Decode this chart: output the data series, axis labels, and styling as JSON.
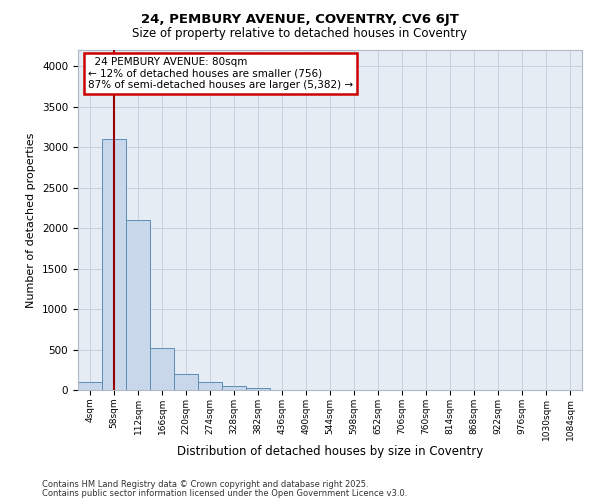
{
  "title1": "24, PEMBURY AVENUE, COVENTRY, CV6 6JT",
  "title2": "Size of property relative to detached houses in Coventry",
  "xlabel": "Distribution of detached houses by size in Coventry",
  "ylabel": "Number of detached properties",
  "bin_labels": [
    "4sqm",
    "58sqm",
    "112sqm",
    "166sqm",
    "220sqm",
    "274sqm",
    "328sqm",
    "382sqm",
    "436sqm",
    "490sqm",
    "544sqm",
    "598sqm",
    "652sqm",
    "706sqm",
    "760sqm",
    "814sqm",
    "868sqm",
    "922sqm",
    "976sqm",
    "1030sqm",
    "1084sqm"
  ],
  "bar_values": [
    100,
    3100,
    2100,
    520,
    200,
    100,
    50,
    30,
    0,
    0,
    0,
    0,
    0,
    0,
    0,
    0,
    0,
    0,
    0,
    0
  ],
  "bar_color": "#c8d8ea",
  "bar_edge_color": "#5b8db8",
  "grid_color": "#c4cdd8",
  "bg_color": "#e6ecf4",
  "red_line_x": 1.0,
  "annotation_text_lines": [
    "  24 PEMBURY AVENUE: 80sqm  ",
    "← 12% of detached houses are smaller (756)",
    "87% of semi-detached houses are larger (5,382) →"
  ],
  "annotation_box_color": "#cc0000",
  "ylim": [
    0,
    4200
  ],
  "yticks": [
    0,
    500,
    1000,
    1500,
    2000,
    2500,
    3000,
    3500,
    4000
  ],
  "footer1": "Contains HM Land Registry data © Crown copyright and database right 2025.",
  "footer2": "Contains public sector information licensed under the Open Government Licence v3.0."
}
